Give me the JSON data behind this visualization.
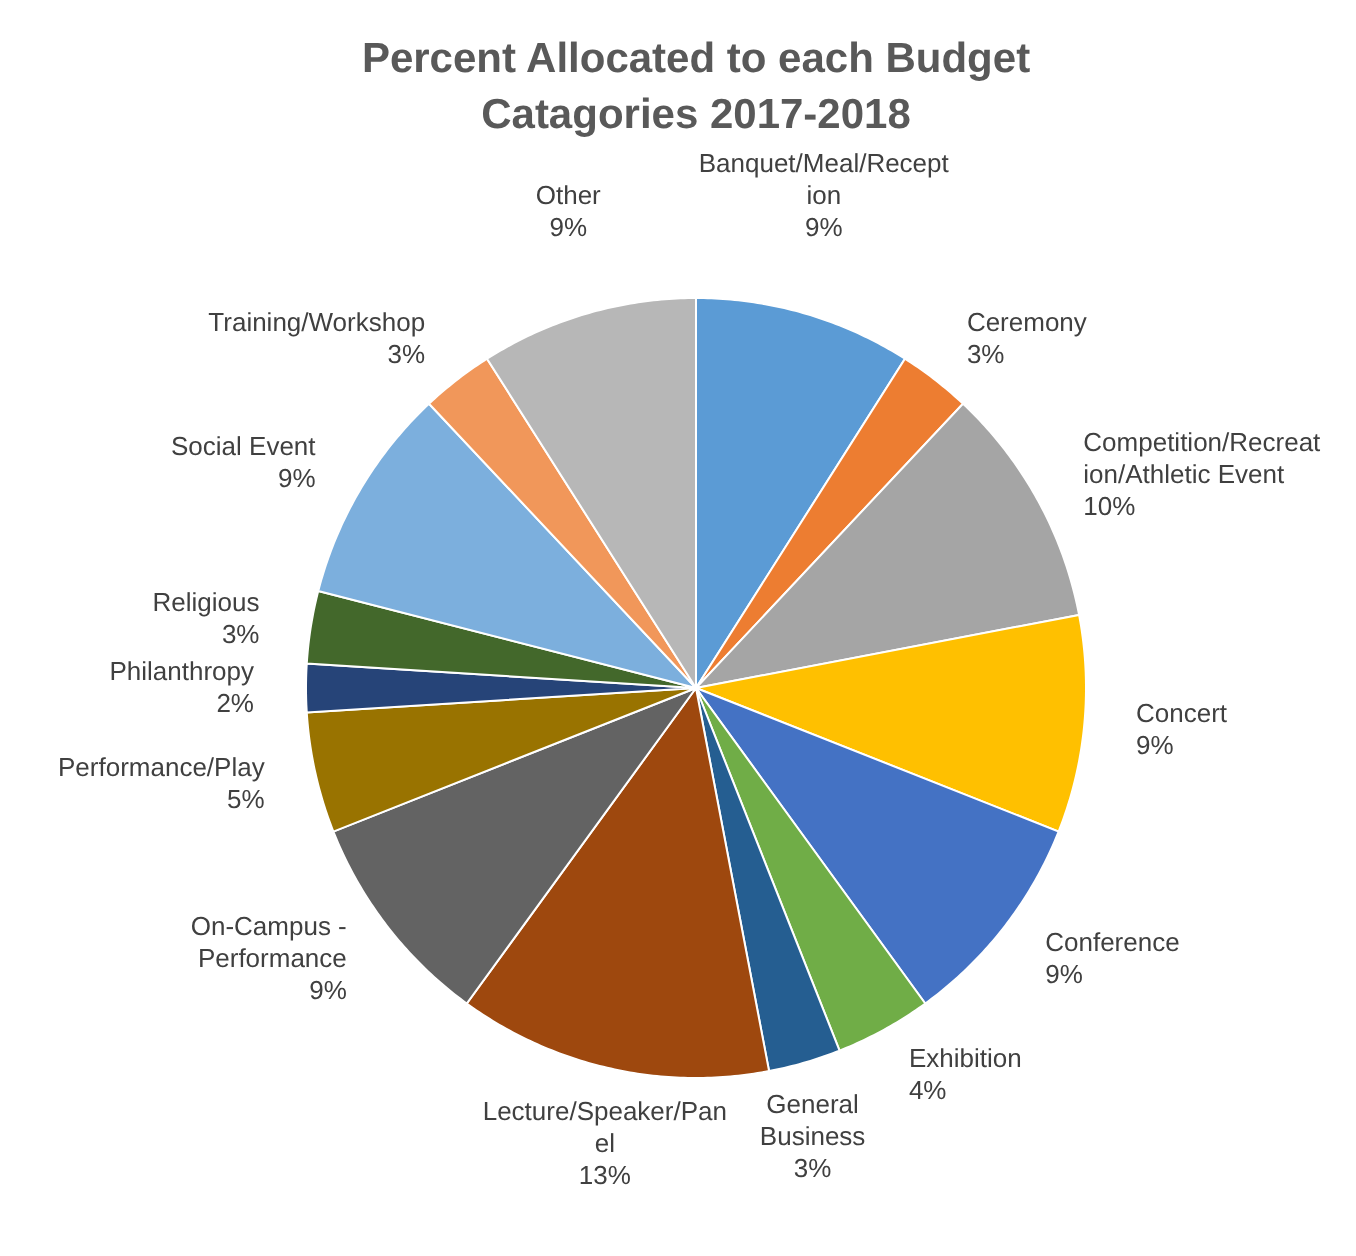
{
  "chart_data": {
    "type": "pie",
    "title": "Percent Allocated to each Budget Catagories 2017-2018",
    "categories": [
      "Banquet/Meal/Reception",
      "Ceremony",
      "Competition/Recreation/Athletic Event",
      "Concert",
      "Conference",
      "Exhibition",
      "General Business",
      "Lecture/Speaker/Panel",
      "On-Campus - Performance",
      "Performance/Play",
      "Philanthropy",
      "Religious",
      "Social Event",
      "Training/Workshop",
      "Other"
    ],
    "values": [
      9,
      3,
      10,
      9,
      9,
      4,
      3,
      13,
      9,
      5,
      2,
      3,
      9,
      3,
      9
    ],
    "value_labels": [
      "9%",
      "3%",
      "10%",
      "9%",
      "9%",
      "4%",
      "3%",
      "13%",
      "9%",
      "5%",
      "2%",
      "3%",
      "9%",
      "3%",
      "9%"
    ],
    "colors": [
      "#5b9bd5",
      "#ed7d31",
      "#a5a5a5",
      "#ffc000",
      "#4472c4",
      "#70ad47",
      "#255e91",
      "#9e480e",
      "#636363",
      "#997300",
      "#264478",
      "#43682b",
      "#7cafdd",
      "#f1975a",
      "#b7b7b7"
    ],
    "legend": false
  }
}
